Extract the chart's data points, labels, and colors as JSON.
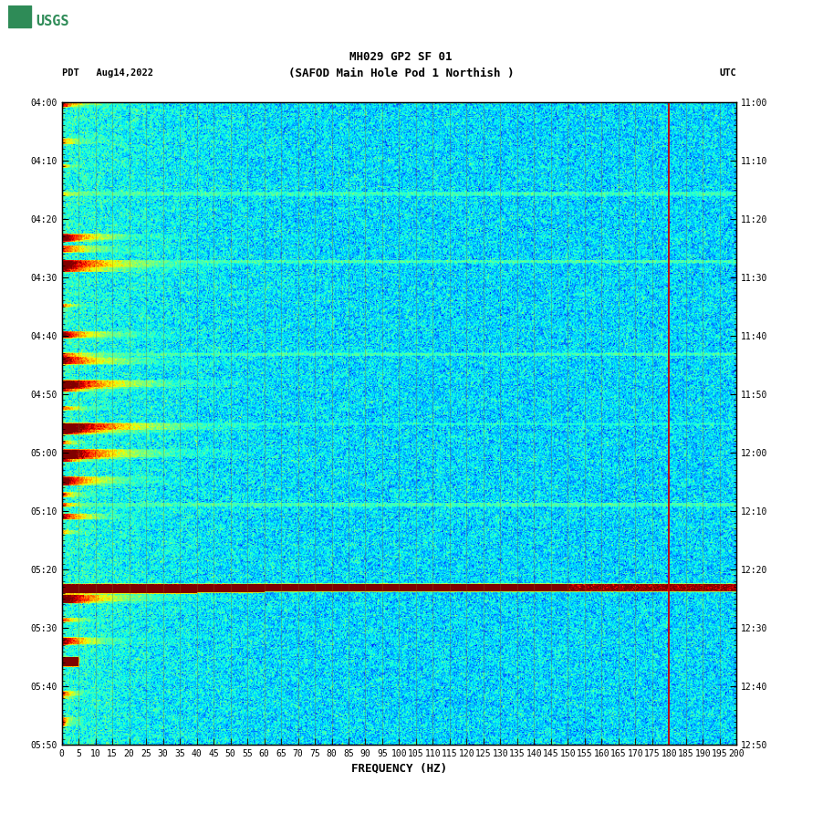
{
  "title_line1": "MH029 GP2 SF 01",
  "title_line2": "(SAFOD Main Hole Pod 1 Northish )",
  "date_label": "PDT   Aug14,2022",
  "utc_label": "UTC",
  "xlabel": "FREQUENCY (HZ)",
  "freq_min": 0,
  "freq_max": 200,
  "colormap": "jet",
  "background_color": "#ffffff",
  "fig_width": 9.02,
  "fig_height": 8.92,
  "dpi": 100,
  "left_yticks": [
    "04:00",
    "04:10",
    "04:20",
    "04:30",
    "04:40",
    "04:50",
    "05:00",
    "05:10",
    "05:20",
    "05:30",
    "05:40",
    "05:50"
  ],
  "right_yticks": [
    "11:00",
    "11:10",
    "11:20",
    "11:30",
    "11:40",
    "11:50",
    "12:00",
    "12:10",
    "12:20",
    "12:30",
    "12:40",
    "12:50"
  ],
  "red_line_freq": 180,
  "vertical_line_color": "#8B6914",
  "red_vertical_color": "#cc0000",
  "title_fontsize": 9,
  "tick_fontsize": 7,
  "label_fontsize": 9,
  "n_time": 660,
  "n_freq": 800,
  "vmin": -1.0,
  "vmax": 3.5
}
